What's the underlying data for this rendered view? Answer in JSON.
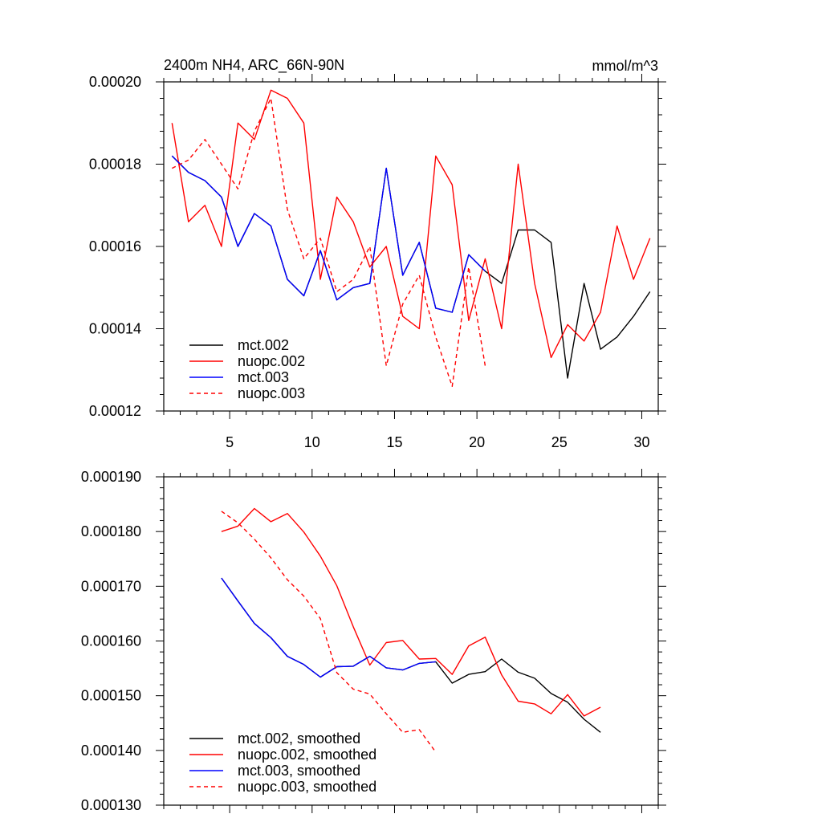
{
  "chart_data": [
    {
      "type": "line",
      "title": "2400m NH4, ARC_66N-90N",
      "units": "mmol/m^3",
      "xlabel": "",
      "ylabel": "",
      "xlim": [
        1,
        31
      ],
      "ylim": [
        0.00012,
        0.0002
      ],
      "xticks": [
        5,
        10,
        15,
        20,
        25,
        30
      ],
      "xtick_labels": [
        "5",
        "10",
        "15",
        "20",
        "25",
        "30"
      ],
      "yticks": [
        0.00012,
        0.00014,
        0.00016,
        0.00018,
        0.0002
      ],
      "ytick_labels": [
        "0.00012",
        "0.00014",
        "0.00016",
        "0.00018",
        "0.00020"
      ],
      "legend_position": "bottom-left",
      "series": [
        {
          "name": "mct.002",
          "color": "#000000",
          "dash": "solid",
          "x": [
            1.5,
            2.5,
            3.5,
            4.5,
            5.5,
            6.5,
            7.5,
            8.5,
            9.5,
            10.5,
            11.5,
            12.5,
            13.5,
            14.5,
            15.5,
            16.5,
            17.5,
            18.5,
            19.5,
            20.5,
            21.5,
            22.5,
            23.5,
            24.5,
            25.5,
            26.5,
            27.5,
            28.5,
            29.5,
            30.5
          ],
          "values": [
            0.000182,
            0.000178,
            0.000176,
            0.000172,
            0.00016,
            0.000168,
            0.000165,
            0.000152,
            0.000148,
            0.000159,
            0.000147,
            0.00015,
            0.000151,
            0.000179,
            0.000153,
            0.000161,
            0.000145,
            0.000144,
            0.000158,
            0.000154,
            0.000151,
            0.000164,
            0.000164,
            0.000161,
            0.000128,
            0.000151,
            0.000135,
            0.000138,
            0.000143,
            0.000149
          ]
        },
        {
          "name": "nuopc.002",
          "color": "#ff0000",
          "dash": "solid",
          "x": [
            1.5,
            2.5,
            3.5,
            4.5,
            5.5,
            6.5,
            7.5,
            8.5,
            9.5,
            10.5,
            11.5,
            12.5,
            13.5,
            14.5,
            15.5,
            16.5,
            17.5,
            18.5,
            19.5,
            20.5,
            21.5,
            22.5,
            23.5,
            24.5,
            25.5,
            26.5,
            27.5,
            28.5,
            29.5,
            30.5
          ],
          "values": [
            0.00019,
            0.000166,
            0.00017,
            0.00016,
            0.00019,
            0.000186,
            0.000198,
            0.000196,
            0.00019,
            0.000152,
            0.000172,
            0.000166,
            0.000155,
            0.00016,
            0.000143,
            0.00014,
            0.000182,
            0.000175,
            0.000142,
            0.000157,
            0.00014,
            0.00018,
            0.000151,
            0.000133,
            0.000141,
            0.000137,
            0.000144,
            0.000165,
            0.000152,
            0.000162
          ]
        },
        {
          "name": "mct.003",
          "color": "#0000ff",
          "dash": "solid",
          "x": [
            1.5,
            2.5,
            3.5,
            4.5,
            5.5,
            6.5,
            7.5,
            8.5,
            9.5,
            10.5,
            11.5,
            12.5,
            13.5,
            14.5,
            15.5,
            16.5,
            17.5,
            18.5,
            19.5,
            20.5
          ],
          "values": [
            0.000182,
            0.000178,
            0.000176,
            0.000172,
            0.00016,
            0.000168,
            0.000165,
            0.000152,
            0.000148,
            0.000159,
            0.000147,
            0.00015,
            0.000151,
            0.000179,
            0.000153,
            0.000161,
            0.000145,
            0.000144,
            0.000158,
            0.000154
          ]
        },
        {
          "name": "nuopc.003",
          "color": "#ff0000",
          "dash": "dashed",
          "x": [
            1.5,
            2.5,
            3.5,
            4.5,
            5.5,
            6.5,
            7.5,
            8.5,
            9.5,
            10.5,
            11.5,
            12.5,
            13.5,
            14.5,
            15.5,
            16.5,
            17.5,
            18.5,
            19.5,
            20.5
          ],
          "values": [
            0.000179,
            0.000181,
            0.000186,
            0.00018,
            0.000174,
            0.000188,
            0.000196,
            0.000169,
            0.000157,
            0.000162,
            0.000149,
            0.000152,
            0.00016,
            0.000131,
            0.000146,
            0.000153,
            0.000138,
            0.000126,
            0.000155,
            0.000131
          ]
        }
      ]
    },
    {
      "type": "line",
      "title": "",
      "xlabel": "",
      "ylabel": "",
      "xlim": [
        1,
        31
      ],
      "ylim": [
        0.00013,
        0.00019
      ],
      "xticks": [
        5,
        10,
        15,
        20,
        25,
        30
      ],
      "xtick_labels": [],
      "yticks": [
        0.00013,
        0.00014,
        0.00015,
        0.00016,
        0.00017,
        0.00018,
        0.00019
      ],
      "ytick_labels": [
        "0.000130",
        "0.000140",
        "0.000150",
        "0.000160",
        "0.000170",
        "0.000180",
        "0.000190"
      ],
      "legend_position": "bottom-left",
      "series": [
        {
          "name": "mct.002, smoothed",
          "color": "#000000",
          "dash": "solid",
          "x": [
            4.5,
            5.5,
            6.5,
            7.5,
            8.5,
            9.5,
            10.5,
            11.5,
            12.5,
            13.5,
            14.5,
            15.5,
            16.5,
            17.5,
            18.5,
            19.5,
            20.5,
            21.5,
            22.5,
            23.5,
            24.5,
            25.5,
            26.5,
            27.5
          ],
          "values": [
            0.0001715,
            0.0001673,
            0.0001632,
            0.0001606,
            0.0001572,
            0.0001557,
            0.0001534,
            0.0001553,
            0.0001554,
            0.0001572,
            0.0001551,
            0.0001547,
            0.0001559,
            0.0001562,
            0.0001523,
            0.0001539,
            0.0001544,
            0.0001567,
            0.0001543,
            0.0001532,
            0.0001504,
            0.0001488,
            0.0001457,
            0.0001433
          ]
        },
        {
          "name": "nuopc.002, smoothed",
          "color": "#ff0000",
          "dash": "solid",
          "x": [
            4.5,
            5.5,
            6.5,
            7.5,
            8.5,
            9.5,
            10.5,
            11.5,
            12.5,
            13.5,
            14.5,
            15.5,
            16.5,
            17.5,
            18.5,
            19.5,
            20.5,
            21.5,
            22.5,
            23.5,
            24.5,
            25.5,
            26.5,
            27.5
          ],
          "values": [
            0.00018,
            0.000181,
            0.0001842,
            0.0001818,
            0.0001833,
            0.0001799,
            0.0001755,
            0.0001701,
            0.0001626,
            0.0001556,
            0.0001597,
            0.0001601,
            0.0001567,
            0.0001568,
            0.0001539,
            0.0001591,
            0.0001607,
            0.0001538,
            0.000149,
            0.0001485,
            0.0001467,
            0.0001502,
            0.0001463,
            0.0001479
          ]
        },
        {
          "name": "mct.003, smoothed",
          "color": "#0000ff",
          "dash": "solid",
          "x": [
            4.5,
            5.5,
            6.5,
            7.5,
            8.5,
            9.5,
            10.5,
            11.5,
            12.5,
            13.5,
            14.5,
            15.5,
            16.5,
            17.5
          ],
          "values": [
            0.0001715,
            0.0001673,
            0.0001632,
            0.0001606,
            0.0001572,
            0.0001557,
            0.0001534,
            0.0001553,
            0.0001554,
            0.0001572,
            0.0001551,
            0.0001547,
            0.0001559,
            0.0001562
          ]
        },
        {
          "name": "nuopc.003, smoothed",
          "color": "#ff0000",
          "dash": "dashed",
          "x": [
            4.5,
            5.5,
            6.5,
            7.5,
            8.5,
            9.5,
            10.5,
            11.5,
            12.5,
            13.5,
            14.5,
            15.5,
            16.5,
            17.5
          ],
          "values": [
            0.0001837,
            0.0001816,
            0.0001786,
            0.0001752,
            0.0001712,
            0.0001682,
            0.0001641,
            0.0001542,
            0.0001512,
            0.0001503,
            0.0001467,
            0.0001433,
            0.0001438,
            0.0001397
          ]
        }
      ]
    }
  ]
}
